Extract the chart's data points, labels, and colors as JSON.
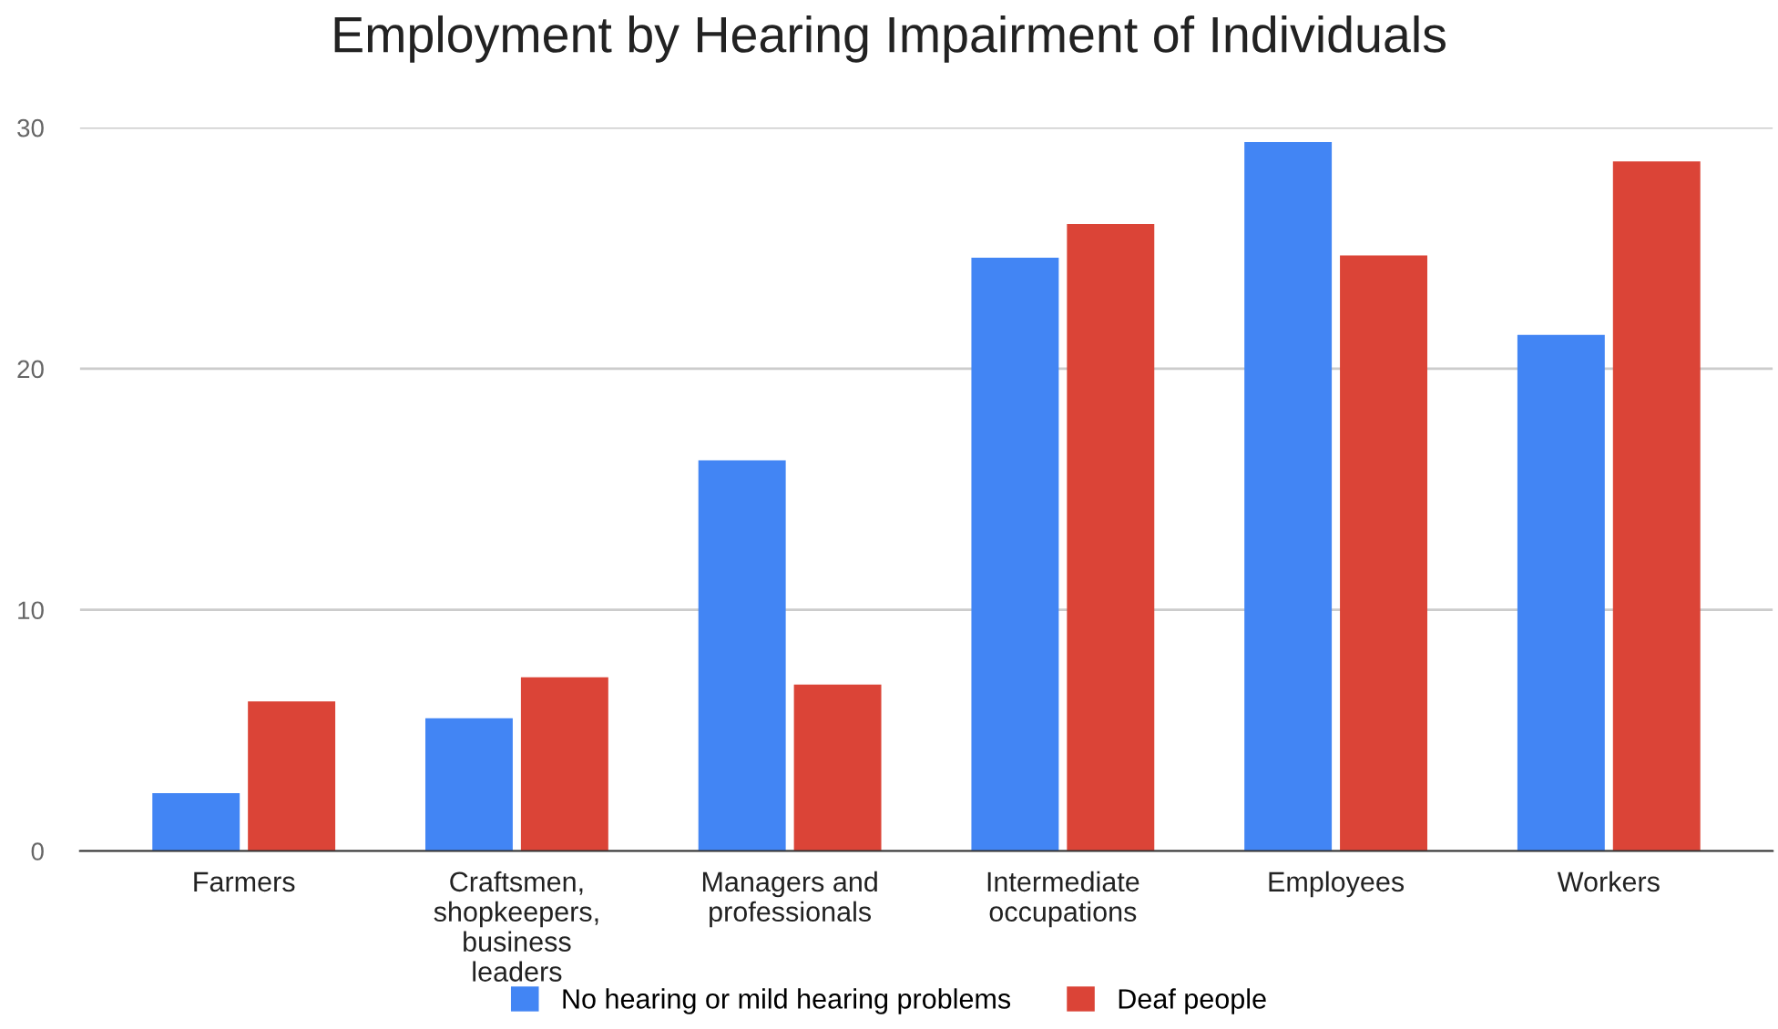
{
  "chart_data": {
    "type": "bar",
    "title": "Employment by Hearing Impairment of Individuals",
    "categories": [
      "Farmers",
      "Craftsmen,\nshopkeepers,\nbusiness\nleaders",
      "Managers and\nprofessionals",
      "Intermediate\noccupations",
      "Employees",
      "Workers"
    ],
    "series": [
      {
        "name": "No hearing or mild hearing problems",
        "color": "#4285f4",
        "values": [
          2.4,
          5.5,
          16.2,
          24.6,
          29.4,
          21.4
        ]
      },
      {
        "name": "Deaf people",
        "color": "#db4437",
        "values": [
          6.2,
          7.2,
          6.9,
          26.0,
          24.7,
          28.6
        ]
      }
    ],
    "ylim": [
      0,
      30
    ],
    "yticks": [
      0,
      10,
      20,
      30
    ],
    "grid": "y",
    "legend": "bottom"
  }
}
